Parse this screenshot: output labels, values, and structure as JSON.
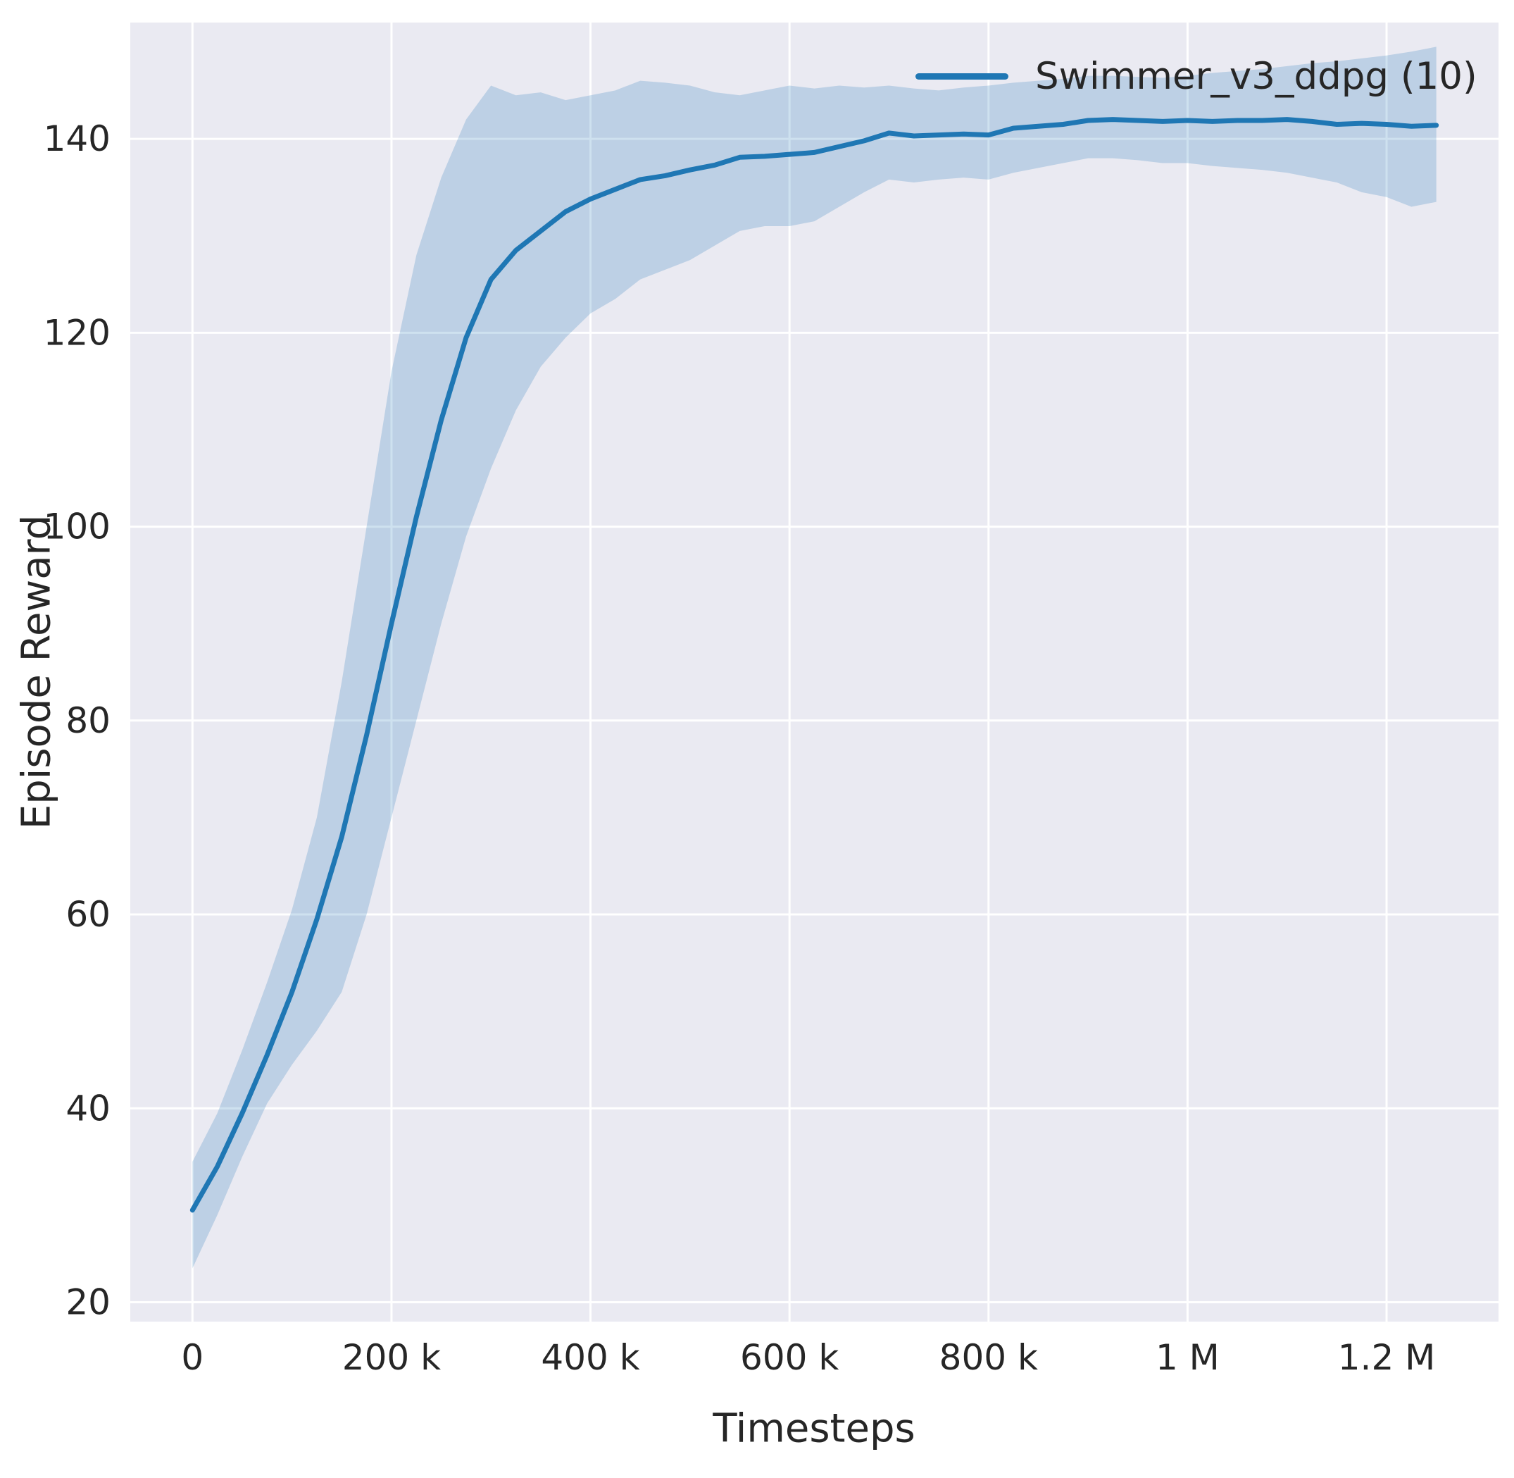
{
  "figure": {
    "background": "#ffffff",
    "axes_background": "#eaeaf2",
    "grid_color": "#ffffff",
    "text_color": "#262626"
  },
  "chart_data": {
    "type": "line",
    "title": "",
    "xlabel": "Timesteps",
    "ylabel": "Episode Reward",
    "xlim": [
      -62500,
      1312500
    ],
    "ylim": [
      18,
      152
    ],
    "grid": true,
    "legend_position": "upper right",
    "xticks": [
      {
        "value": 0,
        "label": "0"
      },
      {
        "value": 200000,
        "label": "200 k"
      },
      {
        "value": 400000,
        "label": "400 k"
      },
      {
        "value": 600000,
        "label": "600 k"
      },
      {
        "value": 800000,
        "label": "800 k"
      },
      {
        "value": 1000000,
        "label": "1 M"
      },
      {
        "value": 1200000,
        "label": "1.2 M"
      }
    ],
    "yticks": [
      {
        "value": 20,
        "label": "20"
      },
      {
        "value": 40,
        "label": "40"
      },
      {
        "value": 60,
        "label": "60"
      },
      {
        "value": 80,
        "label": "80"
      },
      {
        "value": 100,
        "label": "100"
      },
      {
        "value": 120,
        "label": "120"
      },
      {
        "value": 140,
        "label": "140"
      }
    ],
    "legend": {
      "entries": [
        {
          "label": "Swimmer_v3_ddpg (10)",
          "color": "#1f77b4"
        }
      ]
    },
    "series": [
      {
        "name": "Swimmer_v3_ddpg (10)",
        "color": "#1f77b4",
        "line_width": 7,
        "band_opacity": 0.22,
        "x": [
          0,
          25000,
          50000,
          75000,
          100000,
          125000,
          150000,
          175000,
          200000,
          225000,
          250000,
          275000,
          300000,
          325000,
          350000,
          375000,
          400000,
          425000,
          450000,
          475000,
          500000,
          525000,
          550000,
          575000,
          600000,
          625000,
          650000,
          675000,
          700000,
          725000,
          750000,
          775000,
          800000,
          825000,
          850000,
          875000,
          900000,
          925000,
          950000,
          975000,
          1000000,
          1025000,
          1050000,
          1075000,
          1100000,
          1125000,
          1150000,
          1175000,
          1200000,
          1225000,
          1250000
        ],
        "mean": [
          29.5,
          34,
          39.5,
          45.5,
          52,
          59.5,
          68,
          78.5,
          90,
          101,
          111,
          119.5,
          125.5,
          128.5,
          130.5,
          132.5,
          133.8,
          134.8,
          135.8,
          136.2,
          136.8,
          137.3,
          138.1,
          138.2,
          138.4,
          138.6,
          139.2,
          139.8,
          140.6,
          140.3,
          140.4,
          140.5,
          140.4,
          141.1,
          141.3,
          141.5,
          141.9,
          142.0,
          141.9,
          141.8,
          141.9,
          141.8,
          141.9,
          141.9,
          142.0,
          141.8,
          141.5,
          141.6,
          141.5,
          141.3,
          141.4
        ],
        "band_lower": [
          23.5,
          29,
          35,
          40.5,
          44.5,
          48,
          52,
          60,
          70,
          80,
          90,
          99,
          106,
          112,
          116.5,
          119.5,
          122,
          123.5,
          125.5,
          126.5,
          127.5,
          129,
          130.5,
          131,
          131,
          131.5,
          133,
          134.5,
          135.8,
          135.5,
          135.8,
          136,
          135.8,
          136.5,
          137,
          137.5,
          138,
          138,
          137.8,
          137.5,
          137.5,
          137.2,
          137,
          136.8,
          136.5,
          136,
          135.5,
          134.5,
          134,
          133,
          133.5
        ],
        "band_upper": [
          34.5,
          39.5,
          46,
          53,
          60.5,
          70,
          84,
          100,
          116,
          128,
          136,
          142,
          145.5,
          144.5,
          144.8,
          144,
          144.5,
          145,
          146,
          145.8,
          145.5,
          144.8,
          144.5,
          145,
          145.5,
          145.2,
          145.5,
          145.3,
          145.5,
          145.2,
          145,
          145.3,
          145.5,
          145.8,
          146,
          146.2,
          146.5,
          146.5,
          146.4,
          146.3,
          146.5,
          146.8,
          147,
          147.2,
          147.5,
          147.8,
          148,
          148.3,
          148.6,
          149,
          149.5
        ]
      }
    ]
  }
}
